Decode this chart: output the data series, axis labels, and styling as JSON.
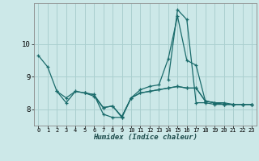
{
  "xlabel": "Humidex (Indice chaleur)",
  "bg_color": "#cce8e8",
  "grid_color": "#aacfcf",
  "line_color": "#1a6b6b",
  "xlim": [
    -0.5,
    23.5
  ],
  "ylim": [
    7.5,
    11.25
  ],
  "yticks": [
    8,
    9,
    10
  ],
  "xtick_labels": [
    "0",
    "1",
    "2",
    "3",
    "4",
    "5",
    "6",
    "7",
    "8",
    "9",
    "10",
    "11",
    "12",
    "13",
    "14",
    "15",
    "16",
    "17",
    "18",
    "19",
    "20",
    "21",
    "22",
    "23"
  ],
  "series": [
    [
      9.65,
      9.3,
      8.55,
      8.35,
      8.55,
      8.5,
      8.45,
      7.85,
      7.75,
      7.75,
      8.35,
      8.6,
      8.7,
      8.75,
      9.55,
      10.85,
      9.5,
      9.35,
      8.25,
      8.2,
      8.2,
      8.15,
      8.15,
      8.15
    ],
    [
      null,
      null,
      8.55,
      8.2,
      8.55,
      8.5,
      8.4,
      8.05,
      8.1,
      7.75,
      8.35,
      8.5,
      8.55,
      8.6,
      8.65,
      8.7,
      8.65,
      8.65,
      8.25,
      8.2,
      8.15,
      8.15,
      8.15,
      8.15
    ],
    [
      null,
      null,
      null,
      null,
      null,
      8.5,
      8.45,
      8.05,
      8.1,
      7.78,
      8.35,
      8.5,
      8.55,
      8.6,
      8.65,
      8.7,
      8.65,
      8.65,
      8.25,
      8.2,
      8.15,
      8.15,
      8.15,
      8.15
    ],
    [
      null,
      null,
      null,
      null,
      null,
      null,
      null,
      null,
      null,
      null,
      null,
      null,
      null,
      null,
      8.9,
      11.05,
      10.75,
      8.2,
      8.2,
      8.15,
      8.15,
      8.15,
      8.15,
      8.15
    ]
  ]
}
